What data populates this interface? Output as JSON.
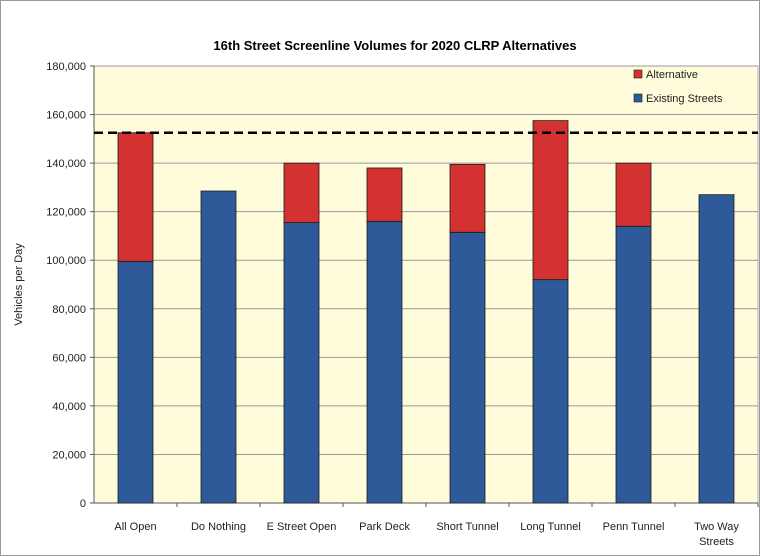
{
  "chart_data": {
    "type": "bar",
    "stacked": true,
    "title": "16th Street Screenline Volumes for 2020 CLRP Alternatives",
    "xlabel": "",
    "ylabel": "Vehicles per Day",
    "ylim": [
      0,
      180000
    ],
    "yticks": [
      0,
      20000,
      40000,
      60000,
      80000,
      100000,
      120000,
      140000,
      160000,
      180000
    ],
    "ytick_labels": [
      "0",
      "20,000",
      "40,000",
      "60,000",
      "80,000",
      "100,000",
      "120,000",
      "140,000",
      "160,000",
      "180,000"
    ],
    "categories": [
      [
        "All Open"
      ],
      [
        "Do Nothing"
      ],
      [
        "E Street Open"
      ],
      [
        "Park Deck"
      ],
      [
        "Short Tunnel"
      ],
      [
        "Long Tunnel"
      ],
      [
        "Penn Tunnel"
      ],
      [
        "Two Way",
        "Streets"
      ]
    ],
    "series": [
      {
        "name": "Existing Streets",
        "color": "#2E5A99",
        "values": [
          99500,
          128500,
          115500,
          116000,
          111500,
          92000,
          114000,
          127000
        ]
      },
      {
        "name": "Alternative",
        "color": "#D43131",
        "values": [
          53000,
          0,
          24500,
          22000,
          28000,
          65500,
          26000,
          0
        ]
      }
    ],
    "reference_line": {
      "value": 152500,
      "style": "dashed",
      "color": "#000000"
    },
    "grid": true,
    "legend": {
      "position": "top-right",
      "order": [
        "Alternative",
        "Existing Streets"
      ]
    },
    "plot_background": "#FFFCDC"
  }
}
